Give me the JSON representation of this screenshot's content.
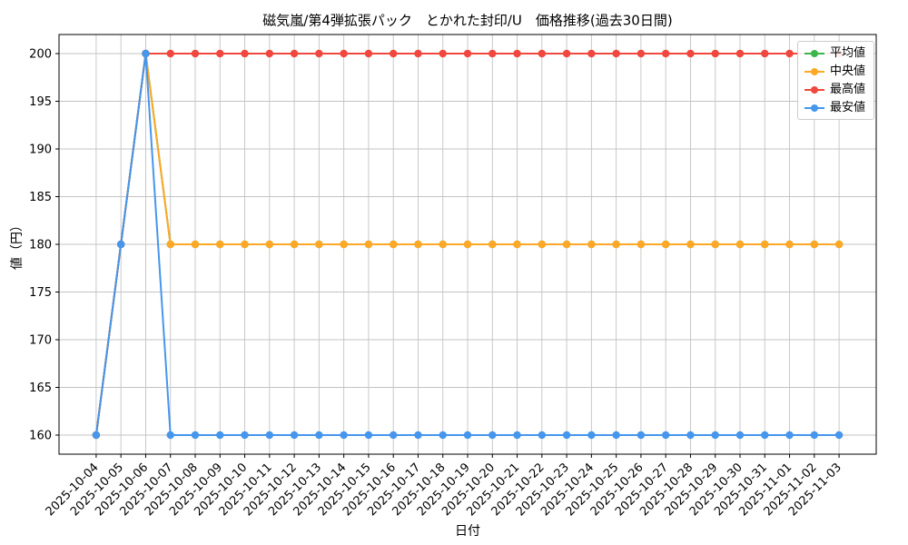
{
  "chart_data": {
    "type": "line",
    "title": "磁気嵐/第4弾拡張パック　とかれた封印/U　価格推移(過去30日間)",
    "xlabel": "日付",
    "ylabel": "値（円）",
    "grid": true,
    "legend_position": "upper right",
    "ylim": [
      158,
      202
    ],
    "yticks": [
      160,
      165,
      170,
      175,
      180,
      185,
      190,
      195,
      200
    ],
    "categories": [
      "2025-10-04",
      "2025-10-05",
      "2025-10-06",
      "2025-10-07",
      "2025-10-08",
      "2025-10-09",
      "2025-10-10",
      "2025-10-11",
      "2025-10-12",
      "2025-10-13",
      "2025-10-14",
      "2025-10-15",
      "2025-10-16",
      "2025-10-17",
      "2025-10-18",
      "2025-10-19",
      "2025-10-20",
      "2025-10-21",
      "2025-10-22",
      "2025-10-23",
      "2025-10-24",
      "2025-10-25",
      "2025-10-26",
      "2025-10-27",
      "2025-10-28",
      "2025-10-29",
      "2025-10-30",
      "2025-10-31",
      "2025-11-01",
      "2025-11-02",
      "2025-11-03"
    ],
    "series": [
      {
        "name": "平均値",
        "color": "#3cb54b",
        "values": [
          160,
          180,
          200,
          180,
          180,
          180,
          180,
          180,
          180,
          180,
          180,
          180,
          180,
          180,
          180,
          180,
          180,
          180,
          180,
          180,
          180,
          180,
          180,
          180,
          180,
          180,
          180,
          180,
          180,
          180,
          180
        ]
      },
      {
        "name": "中央値",
        "color": "#ffa726",
        "values": [
          160,
          180,
          200,
          180,
          180,
          180,
          180,
          180,
          180,
          180,
          180,
          180,
          180,
          180,
          180,
          180,
          180,
          180,
          180,
          180,
          180,
          180,
          180,
          180,
          180,
          180,
          180,
          180,
          180,
          180,
          180
        ]
      },
      {
        "name": "最高値",
        "color": "#f0483e",
        "values": [
          160,
          180,
          200,
          200,
          200,
          200,
          200,
          200,
          200,
          200,
          200,
          200,
          200,
          200,
          200,
          200,
          200,
          200,
          200,
          200,
          200,
          200,
          200,
          200,
          200,
          200,
          200,
          200,
          200,
          200,
          200
        ]
      },
      {
        "name": "最安値",
        "color": "#4596ec",
        "values": [
          160,
          180,
          200,
          160,
          160,
          160,
          160,
          160,
          160,
          160,
          160,
          160,
          160,
          160,
          160,
          160,
          160,
          160,
          160,
          160,
          160,
          160,
          160,
          160,
          160,
          160,
          160,
          160,
          160,
          160,
          160
        ]
      }
    ]
  }
}
